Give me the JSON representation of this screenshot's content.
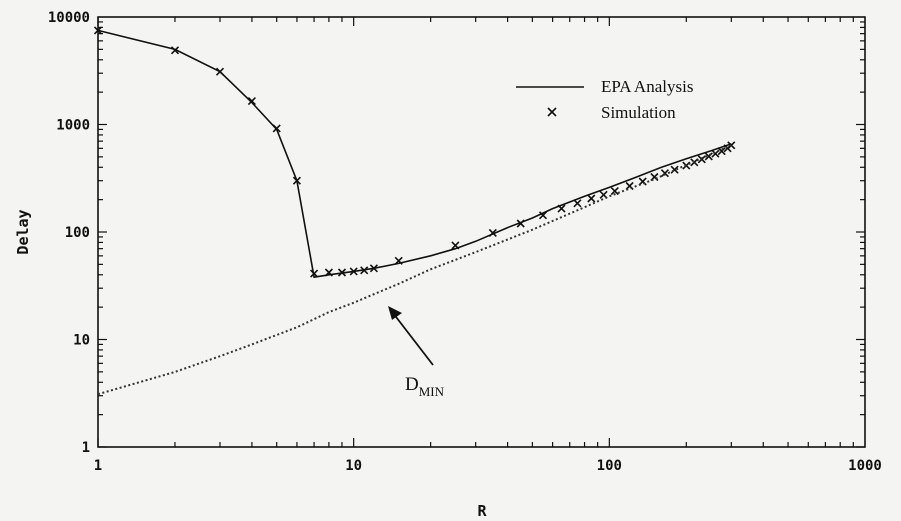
{
  "chart_data": {
    "type": "line",
    "title": "",
    "xlabel": "R",
    "ylabel": "Delay",
    "xscale": "log",
    "yscale": "log",
    "xlim": [
      1,
      1000
    ],
    "ylim": [
      1,
      10000
    ],
    "grid": false,
    "legend_position": "top-right",
    "x_ticks": [
      "1",
      "10",
      "100",
      "1000"
    ],
    "y_ticks": [
      "1",
      "10",
      "100",
      "1000",
      "10000"
    ],
    "series": [
      {
        "name": "EPA Analysis",
        "style": "solid",
        "marker": "none",
        "x": [
          1,
          2,
          3,
          4,
          5,
          6,
          7,
          8,
          10,
          12,
          15,
          20,
          25,
          30,
          40,
          50,
          60,
          80,
          100,
          130,
          160,
          200,
          250,
          300
        ],
        "y": [
          7500,
          5000,
          3100,
          1600,
          900,
          300,
          38,
          40,
          43,
          46,
          51,
          60,
          70,
          82,
          110,
          135,
          165,
          215,
          260,
          330,
          400,
          480,
          570,
          660
        ]
      },
      {
        "name": "Simulation",
        "style": "none",
        "marker": "x",
        "x": [
          1,
          2,
          3,
          4,
          5,
          6,
          7,
          8,
          9,
          10,
          11,
          12,
          15,
          25,
          35,
          45,
          55,
          65,
          75,
          85,
          95,
          105,
          120,
          135,
          150,
          165,
          180,
          200,
          215,
          230,
          245,
          260,
          275,
          290,
          300
        ],
        "y": [
          7500,
          4900,
          3100,
          1650,
          920,
          300,
          41,
          42,
          42,
          43,
          44,
          46,
          54,
          75,
          98,
          120,
          143,
          165,
          185,
          205,
          222,
          240,
          268,
          295,
          325,
          352,
          380,
          415,
          445,
          475,
          505,
          535,
          565,
          600,
          640
        ]
      },
      {
        "name": "",
        "style": "dotted",
        "marker": "none",
        "x": [
          1,
          2,
          3,
          4,
          6,
          8,
          10,
          15,
          20,
          30,
          50,
          80,
          100,
          150,
          200,
          300
        ],
        "y": [
          3.1,
          5,
          7,
          9,
          13,
          18,
          22,
          33,
          45,
          65,
          105,
          170,
          215,
          310,
          420,
          640
        ]
      }
    ],
    "annotations": [
      {
        "text": "D",
        "subscript": "MIN",
        "points_to": {
          "x": 13.5,
          "y": 28
        }
      }
    ],
    "colors": {
      "line": "#111111",
      "dotted": "#333333",
      "background": "#f4f4f2"
    }
  }
}
